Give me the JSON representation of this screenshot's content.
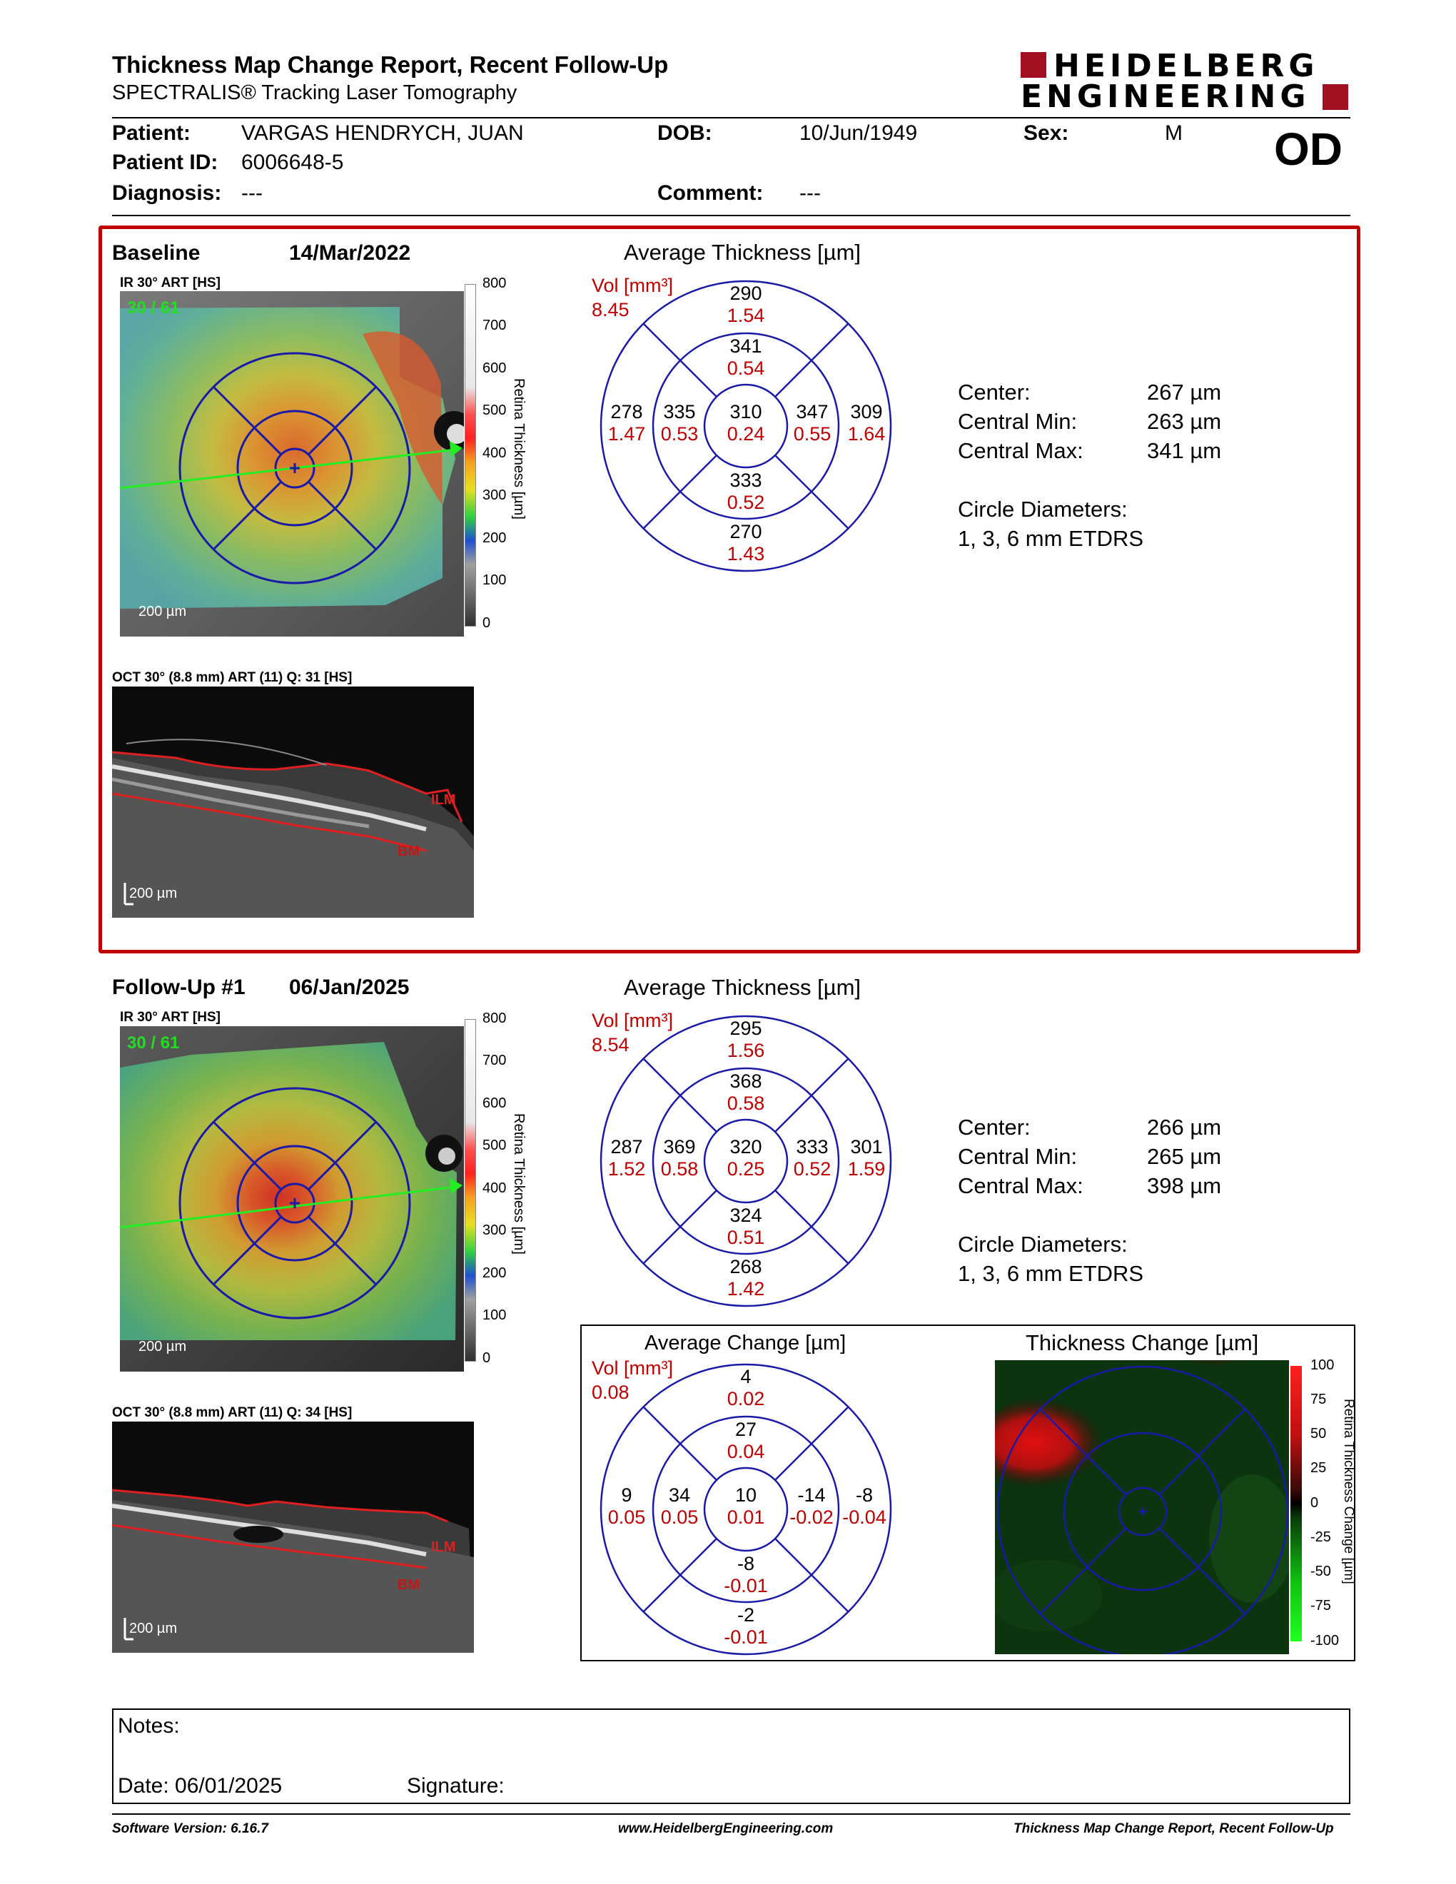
{
  "header": {
    "title": "Thickness Map Change Report, Recent Follow-Up",
    "subtitle": "SPECTRALIS® Tracking Laser Tomography",
    "logo_line1": "HEIDELBERG",
    "logo_line2": "ENGINEERING",
    "eye": "OD"
  },
  "patient": {
    "patient_label": "Patient:",
    "patient_value": "VARGAS HENDRYCH, JUAN",
    "id_label": "Patient ID:",
    "id_value": "6006648-5",
    "diagnosis_label": "Diagnosis:",
    "diagnosis_value": "---",
    "dob_label": "DOB:",
    "dob_value": "10/Jun/1949",
    "comment_label": "Comment:",
    "comment_value": "---",
    "sex_label": "Sex:",
    "sex_value": "M"
  },
  "baseline": {
    "label": "Baseline",
    "date": "14/Mar/2022",
    "ir_label": "IR 30° ART [HS]",
    "frames": "30 / 61",
    "ir_scale": "200 µm",
    "oct_label": "OCT 30° (8.8 mm) ART (11) Q: 31 [HS]",
    "oct_scale": "200 µm",
    "ilm": "ILM",
    "bm": "BM",
    "avg_title": "Average Thickness [µm]",
    "vol_label": "Vol [mm³]",
    "vol_total": "8.45",
    "sectors": {
      "sup_outer": [
        "290",
        "1.54"
      ],
      "sup_inner": [
        "341",
        "0.54"
      ],
      "temp_outer": [
        "278",
        "1.47"
      ],
      "temp_inner": [
        "335",
        "0.53"
      ],
      "center": [
        "310",
        "0.24"
      ],
      "nas_inner": [
        "347",
        "0.55"
      ],
      "nas_outer": [
        "309",
        "1.64"
      ],
      "inf_inner": [
        "333",
        "0.52"
      ],
      "inf_outer": [
        "270",
        "1.43"
      ]
    },
    "stats": [
      {
        "label": "Center:",
        "value": "267 µm"
      },
      {
        "label": "Central Min:",
        "value": "263 µm"
      },
      {
        "label": "Central Max:",
        "value": "341 µm"
      }
    ],
    "circle_label": "Circle Diameters:",
    "circle_value": "1, 3, 6 mm ETDRS"
  },
  "followup": {
    "label": "Follow-Up #1",
    "date": "06/Jan/2025",
    "ir_label": "IR 30° ART [HS]",
    "frames": "30 / 61",
    "ir_scale": "200 µm",
    "oct_label": "OCT 30° (8.8 mm) ART (11) Q: 34 [HS]",
    "oct_scale": "200 µm",
    "ilm": "ILM",
    "bm": "BM",
    "avg_title": "Average Thickness [µm]",
    "vol_label": "Vol [mm³]",
    "vol_total": "8.54",
    "sectors": {
      "sup_outer": [
        "295",
        "1.56"
      ],
      "sup_inner": [
        "368",
        "0.58"
      ],
      "temp_outer": [
        "287",
        "1.52"
      ],
      "temp_inner": [
        "369",
        "0.58"
      ],
      "center": [
        "320",
        "0.25"
      ],
      "nas_inner": [
        "333",
        "0.52"
      ],
      "nas_outer": [
        "301",
        "1.59"
      ],
      "inf_inner": [
        "324",
        "0.51"
      ],
      "inf_outer": [
        "268",
        "1.42"
      ]
    },
    "stats": [
      {
        "label": "Center:",
        "value": "266 µm"
      },
      {
        "label": "Central Min:",
        "value": "265 µm"
      },
      {
        "label": "Central Max:",
        "value": "398 µm"
      }
    ],
    "circle_label": "Circle Diameters:",
    "circle_value": "1, 3, 6 mm ETDRS"
  },
  "thickness_colorbar": {
    "title": "Retina Thickness [µm]",
    "ticks": [
      "800",
      "700",
      "600",
      "500",
      "400",
      "300",
      "200",
      "100",
      "0"
    ]
  },
  "change": {
    "avg_title": "Average Change [µm]",
    "vol_label": "Vol [mm³]",
    "vol_total": "0.08",
    "sectors": {
      "sup_outer": [
        "4",
        "0.02"
      ],
      "sup_inner": [
        "27",
        "0.04"
      ],
      "temp_outer": [
        "9",
        "0.05"
      ],
      "temp_inner": [
        "34",
        "0.05"
      ],
      "center": [
        "10",
        "0.01"
      ],
      "nas_inner": [
        "-14",
        "-0.02"
      ],
      "nas_outer": [
        "-8",
        "-0.04"
      ],
      "inf_inner": [
        "-8",
        "-0.01"
      ],
      "inf_outer": [
        "-2",
        "-0.01"
      ]
    },
    "map_title": "Thickness Change [µm]",
    "colorbar_title": "Retina Thickness Change [µm]",
    "ticks": [
      "100",
      "75",
      "50",
      "25",
      "0",
      "-25",
      "-50",
      "-75",
      "-100"
    ]
  },
  "notes": {
    "notes_label": "Notes:",
    "date_label": "Date: 06/01/2025",
    "signature_label": "Signature:"
  },
  "footer": {
    "software": "Software Version: 6.16.7",
    "website": "www.HeidelbergEngineering.com",
    "report": "Thickness Map Change Report, Recent Follow-Up"
  },
  "colors": {
    "accent_red": "#c00000",
    "etdrs_blue": "#1a1aa8",
    "frames_green": "#22dd22"
  }
}
